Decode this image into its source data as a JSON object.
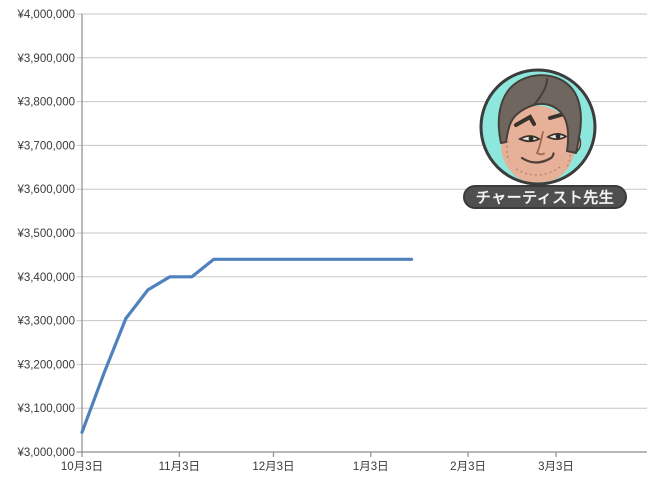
{
  "chart_data": {
    "type": "line",
    "title": "",
    "legend": "none",
    "grid": "horizontal-only",
    "background": "#ffffff",
    "series": [
      {
        "color": "#4F81BD",
        "points": [
          {
            "day": 0,
            "approx_date": "10月3日",
            "value": 3045000
          },
          {
            "day": 7,
            "approx_date": "10月10日",
            "value": 3180000
          },
          {
            "day": 14,
            "approx_date": "10月17日",
            "value": 3305000
          },
          {
            "day": 21,
            "approx_date": "10月24日",
            "value": 3370000
          },
          {
            "day": 28,
            "approx_date": "10月31日",
            "value": 3400000
          },
          {
            "day": 35,
            "approx_date": "11月7日",
            "value": 3400000
          },
          {
            "day": 42,
            "approx_date": "11月14日",
            "value": 3440000
          },
          {
            "day": 105,
            "approx_date": "1月16日",
            "value": 3440000
          }
        ]
      }
    ],
    "x_axis": {
      "range_days": [
        0,
        180
      ],
      "ticks": [
        {
          "day": 0,
          "label": "10月3日"
        },
        {
          "day": 31,
          "label": "11月3日"
        },
        {
          "day": 61,
          "label": "12月3日"
        },
        {
          "day": 92,
          "label": "1月3日"
        },
        {
          "day": 123,
          "label": "2月3日"
        },
        {
          "day": 151,
          "label": "3月3日"
        }
      ]
    },
    "y_axis": {
      "ylim": [
        3000000,
        4000000
      ],
      "tick_step": 100000,
      "ticks": [
        {
          "value": 3000000,
          "label": "¥3,000,000"
        },
        {
          "value": 3100000,
          "label": "¥3,100,000"
        },
        {
          "value": 3200000,
          "label": "¥3,200,000"
        },
        {
          "value": 3300000,
          "label": "¥3,300,000"
        },
        {
          "value": 3400000,
          "label": "¥3,400,000"
        },
        {
          "value": 3500000,
          "label": "¥3,500,000"
        },
        {
          "value": 3600000,
          "label": "¥3,600,000"
        },
        {
          "value": 3700000,
          "label": "¥3,700,000"
        },
        {
          "value": 3800000,
          "label": "¥3,800,000"
        },
        {
          "value": 3900000,
          "label": "¥3,900,000"
        },
        {
          "value": 4000000,
          "label": "¥4,000,000"
        }
      ]
    }
  },
  "colors": {
    "line": "#4F81BD",
    "gridline": "#c6c6c6",
    "axis": "#8e8e8e",
    "label_text": "#3a3a3a"
  },
  "avatar": {
    "label": "チャーティスト先生",
    "colors": {
      "circle_bg": "#8de7dd",
      "circle_border": "#3c3c3c",
      "skin": "#e7b098",
      "hair": "#6f665f",
      "hair_outline": "#46403a",
      "feature": "#37322d",
      "stubble": "#bb8a6e",
      "badge_bg": "#4f4f4f",
      "badge_border": "#3b3b3b",
      "badge_text": "#f4f4f4"
    }
  }
}
